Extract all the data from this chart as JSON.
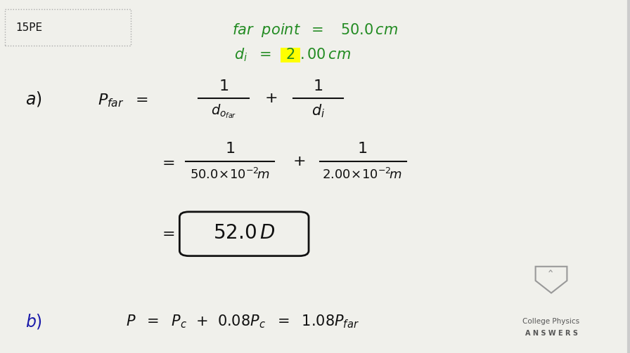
{
  "background_color": "#f0f0eb",
  "label_15PE": "15PE",
  "highlight_color": "#ffff00",
  "green_color": "#228B22",
  "dark_color": "#111111",
  "blue_color": "#1a1aaa",
  "logo_text_line1": "College Physics",
  "logo_text_line2": "A N S W E R S"
}
